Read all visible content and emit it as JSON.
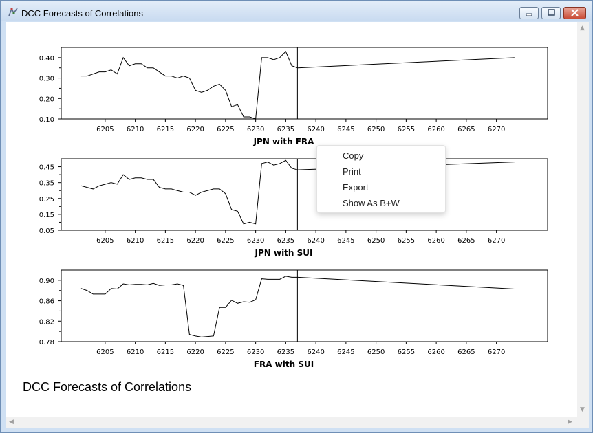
{
  "window": {
    "title": "DCC Forecasts of Correlations"
  },
  "footer_title": "DCC Forecasts of Correlations",
  "context_menu": {
    "items": [
      "Copy",
      "Print",
      "Export",
      "Show As B+W"
    ]
  },
  "chart_data": [
    {
      "type": "line",
      "title": "JPN with FRA",
      "x_start": 6201,
      "forecast_start": 6237,
      "x_end": 6273,
      "x_ticks": [
        6205,
        6210,
        6215,
        6220,
        6225,
        6230,
        6235,
        6240,
        6245,
        6250,
        6255,
        6260,
        6265,
        6270
      ],
      "y_ticks": [
        "0.40",
        "0.30",
        "0.20",
        "0.10"
      ],
      "ylim": [
        0.1,
        0.45
      ],
      "values": [
        0.31,
        0.31,
        0.32,
        0.33,
        0.33,
        0.34,
        0.32,
        0.4,
        0.36,
        0.37,
        0.37,
        0.35,
        0.35,
        0.33,
        0.31,
        0.31,
        0.3,
        0.31,
        0.3,
        0.24,
        0.23,
        0.24,
        0.26,
        0.27,
        0.24,
        0.16,
        0.17,
        0.11,
        0.11,
        0.1,
        0.4,
        0.4,
        0.39,
        0.4,
        0.43,
        0.36,
        0.35,
        0.4
      ]
    },
    {
      "type": "line",
      "title": "JPN with SUI",
      "x_start": 6201,
      "forecast_start": 6237,
      "x_end": 6273,
      "x_ticks": [
        6205,
        6210,
        6215,
        6220,
        6225,
        6230,
        6235,
        6240,
        6245,
        6250,
        6255,
        6260,
        6265,
        6270
      ],
      "y_ticks": [
        "0.45",
        "0.35",
        "0.25",
        "0.15",
        "0.05"
      ],
      "ylim": [
        0.05,
        0.5
      ],
      "values": [
        0.33,
        0.32,
        0.31,
        0.33,
        0.34,
        0.35,
        0.34,
        0.4,
        0.37,
        0.38,
        0.38,
        0.37,
        0.37,
        0.32,
        0.31,
        0.31,
        0.3,
        0.29,
        0.29,
        0.27,
        0.29,
        0.3,
        0.31,
        0.31,
        0.28,
        0.18,
        0.17,
        0.09,
        0.1,
        0.09,
        0.47,
        0.48,
        0.46,
        0.47,
        0.49,
        0.44,
        0.43,
        0.48
      ]
    },
    {
      "type": "line",
      "title": "FRA with SUI",
      "x_start": 6201,
      "forecast_start": 6237,
      "x_end": 6273,
      "x_ticks": [
        6205,
        6210,
        6215,
        6220,
        6225,
        6230,
        6235,
        6240,
        6245,
        6250,
        6255,
        6260,
        6265,
        6270
      ],
      "y_ticks": [
        "0.90",
        "0.86",
        "0.82",
        "0.78"
      ],
      "ylim": [
        0.78,
        0.92
      ],
      "values": [
        0.884,
        0.88,
        0.873,
        0.873,
        0.873,
        0.884,
        0.883,
        0.893,
        0.891,
        0.892,
        0.892,
        0.891,
        0.894,
        0.89,
        0.891,
        0.891,
        0.893,
        0.89,
        0.794,
        0.791,
        0.789,
        0.79,
        0.791,
        0.847,
        0.847,
        0.861,
        0.855,
        0.858,
        0.857,
        0.862,
        0.903,
        0.902,
        0.902,
        0.902,
        0.908,
        0.906,
        0.906,
        0.883
      ]
    }
  ]
}
